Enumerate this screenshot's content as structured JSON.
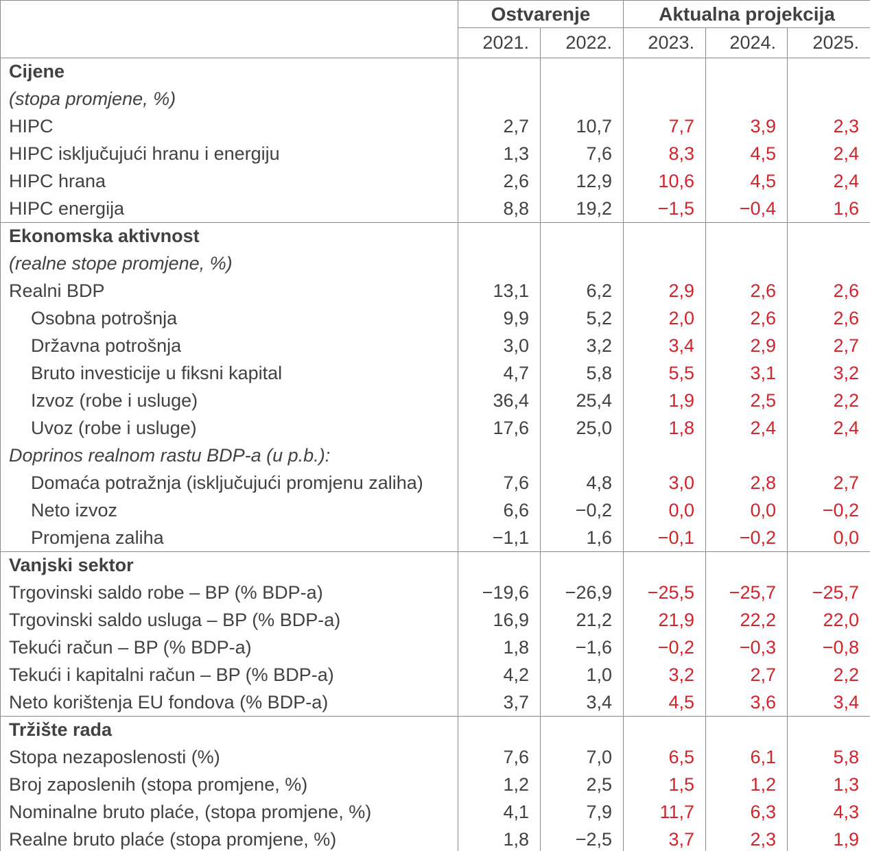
{
  "header": {
    "group_actual": "Ostvarenje",
    "group_projection": "Aktualna projekcija",
    "years": [
      "2021.",
      "2022.",
      "2023.",
      "2024.",
      "2025."
    ]
  },
  "colors": {
    "text": "#414042",
    "projection_red": "#d2232a",
    "border_gray": "#87898b"
  },
  "rows": [
    {
      "label": "Cijene",
      "style": "section"
    },
    {
      "label": "(stopa promjene, %)",
      "style": "italic"
    },
    {
      "label": "HIPC",
      "values": [
        "2,7",
        "10,7",
        "7,7",
        "3,9",
        "2,3"
      ]
    },
    {
      "label": "HIPC isključujući hranu i energiju",
      "values": [
        "1,3",
        "7,6",
        "8,3",
        "4,5",
        "2,4"
      ]
    },
    {
      "label": "HIPC hrana",
      "values": [
        "2,6",
        "12,9",
        "10,6",
        "4,5",
        "2,4"
      ]
    },
    {
      "label": "HIPC energija",
      "values": [
        "8,8",
        "19,2",
        "−1,5",
        "−0,4",
        "1,6"
      ]
    },
    {
      "label": "Ekonomska aktivnost",
      "style": "section"
    },
    {
      "label": "(realne stope promjene, %)",
      "style": "italic"
    },
    {
      "label": "Realni BDP",
      "values": [
        "13,1",
        "6,2",
        "2,9",
        "2,6",
        "2,6"
      ]
    },
    {
      "label": "Osobna potrošnja",
      "style": "indent",
      "values": [
        "9,9",
        "5,2",
        "2,0",
        "2,6",
        "2,6"
      ]
    },
    {
      "label": "Državna potrošnja",
      "style": "indent",
      "values": [
        "3,0",
        "3,2",
        "3,4",
        "2,9",
        "2,7"
      ]
    },
    {
      "label": "Bruto investicije u fiksni kapital",
      "style": "indent",
      "values": [
        "4,7",
        "5,8",
        "5,5",
        "3,1",
        "3,2"
      ]
    },
    {
      "label": "Izvoz (robe i usluge)",
      "style": "indent",
      "values": [
        "36,4",
        "25,4",
        "1,9",
        "2,5",
        "2,2"
      ]
    },
    {
      "label": "Uvoz (robe i usluge)",
      "style": "indent",
      "values": [
        "17,6",
        "25,0",
        "1,8",
        "2,4",
        "2,4"
      ]
    },
    {
      "label": "Doprinos realnom rastu BDP-a (u p.b.):",
      "style": "italic"
    },
    {
      "label": "Domaća potražnja (isključujući promjenu zaliha)",
      "style": "indent",
      "values": [
        "7,6",
        "4,8",
        "3,0",
        "2,8",
        "2,7"
      ]
    },
    {
      "label": "Neto izvoz",
      "style": "indent",
      "values": [
        "6,6",
        "−0,2",
        "0,0",
        "0,0",
        "−0,2"
      ]
    },
    {
      "label": "Promjena zaliha",
      "style": "indent",
      "values": [
        "−1,1",
        "1,6",
        "−0,1",
        "−0,2",
        "0,0"
      ]
    },
    {
      "label": "Vanjski sektor",
      "style": "section"
    },
    {
      "label": "Trgovinski saldo robe – BP (% BDP-a)",
      "values": [
        "−19,6",
        "−26,9",
        "−25,5",
        "−25,7",
        "−25,7"
      ]
    },
    {
      "label": "Trgovinski saldo usluga – BP (% BDP-a)",
      "values": [
        "16,9",
        "21,2",
        "21,9",
        "22,2",
        "22,0"
      ]
    },
    {
      "label": "Tekući račun – BP (% BDP-a)",
      "values": [
        "1,8",
        "−1,6",
        "−0,2",
        "−0,3",
        "−0,8"
      ]
    },
    {
      "label": "Tekući i kapitalni račun – BP (% BDP-a)",
      "values": [
        "4,2",
        "1,0",
        "3,2",
        "2,7",
        "2,2"
      ]
    },
    {
      "label": "Neto korištenja EU fondova (% BDP-a)",
      "values": [
        "3,7",
        "3,4",
        "4,5",
        "3,6",
        "3,4"
      ]
    },
    {
      "label": "Tržište rada",
      "style": "section"
    },
    {
      "label": "Stopa nezaposlenosti (%)",
      "values": [
        "7,6",
        "7,0",
        "6,5",
        "6,1",
        "5,8"
      ]
    },
    {
      "label": "Broj zaposlenih (stopa promjene, %)",
      "values": [
        "1,2",
        "2,5",
        "1,5",
        "1,2",
        "1,3"
      ]
    },
    {
      "label": "Nominalne bruto plaće, (stopa promjene, %)",
      "values": [
        "4,1",
        "7,9",
        "11,7",
        "6,3",
        "4,3"
      ]
    },
    {
      "label": "Realne bruto plaće (stopa promjene, %)",
      "values": [
        "1,8",
        "−2,5",
        "3,7",
        "2,3",
        "1,9"
      ]
    }
  ]
}
